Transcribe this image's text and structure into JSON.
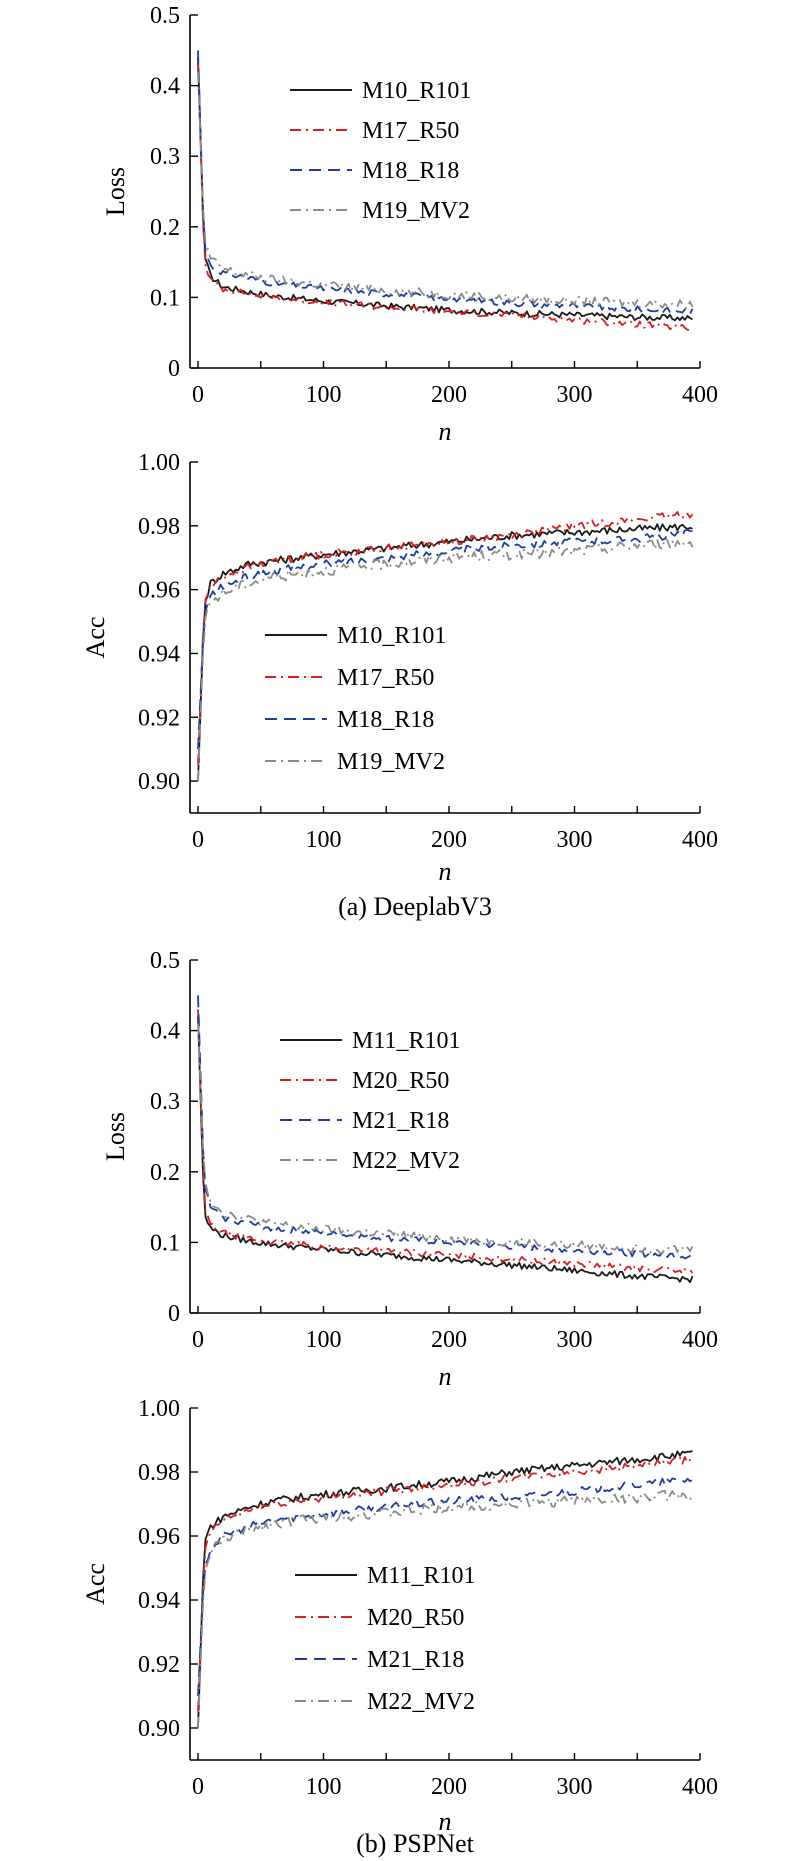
{
  "chart_data": [
    {
      "type": "line",
      "group": "a",
      "xlabel": "n",
      "ylabel": "Loss",
      "xlim": [
        0,
        400
      ],
      "ylim": [
        0,
        0.5
      ],
      "xticks": [
        "0",
        "100",
        "200",
        "300",
        "400"
      ],
      "yticks": [
        "0",
        "0.1",
        "0.2",
        "0.3",
        "0.4",
        "0.5"
      ],
      "legend_position": "top-right",
      "series": [
        {
          "name": "M10_R101",
          "color": "#1a1a1a",
          "dash": "solid",
          "x": [
            0,
            5,
            10,
            20,
            40,
            60,
            100,
            150,
            200,
            250,
            300,
            350,
            400
          ],
          "y": [
            0.44,
            0.16,
            0.13,
            0.115,
            0.108,
            0.102,
            0.095,
            0.088,
            0.082,
            0.078,
            0.075,
            0.072,
            0.07
          ]
        },
        {
          "name": "M17_R50",
          "color": "#d62020",
          "dash": "dashdot",
          "x": [
            0,
            5,
            10,
            20,
            40,
            60,
            100,
            150,
            200,
            250,
            300,
            350,
            400
          ],
          "y": [
            0.43,
            0.15,
            0.125,
            0.112,
            0.105,
            0.1,
            0.093,
            0.086,
            0.08,
            0.075,
            0.068,
            0.062,
            0.055
          ]
        },
        {
          "name": "M18_R18",
          "color": "#1f3d99",
          "dash": "dashed",
          "x": [
            0,
            5,
            10,
            20,
            40,
            60,
            100,
            150,
            200,
            250,
            300,
            350,
            400
          ],
          "y": [
            0.45,
            0.17,
            0.145,
            0.135,
            0.128,
            0.12,
            0.112,
            0.105,
            0.098,
            0.092,
            0.088,
            0.083,
            0.08
          ]
        },
        {
          "name": "M19_MV2",
          "color": "#8a8a8a",
          "dash": "dashdot",
          "x": [
            0,
            5,
            10,
            20,
            40,
            60,
            100,
            150,
            200,
            250,
            300,
            350,
            400
          ],
          "y": [
            0.42,
            0.18,
            0.155,
            0.14,
            0.132,
            0.125,
            0.118,
            0.11,
            0.104,
            0.099,
            0.095,
            0.092,
            0.09
          ]
        }
      ]
    },
    {
      "type": "line",
      "group": "a",
      "xlabel": "n",
      "ylabel": "Acc",
      "xlim": [
        0,
        400
      ],
      "ylim": [
        0.89,
        1.0
      ],
      "xticks": [
        "0",
        "100",
        "200",
        "300",
        "400"
      ],
      "yticks": [
        "0.90",
        "0.92",
        "0.94",
        "0.96",
        "0.98",
        "1.00"
      ],
      "legend_position": "center",
      "series": [
        {
          "name": "M10_R101",
          "color": "#1a1a1a",
          "dash": "solid",
          "x": [
            0,
            5,
            10,
            20,
            40,
            60,
            100,
            150,
            200,
            250,
            300,
            350,
            400
          ],
          "y": [
            0.9,
            0.955,
            0.962,
            0.965,
            0.968,
            0.969,
            0.971,
            0.973,
            0.975,
            0.977,
            0.978,
            0.979,
            0.98
          ]
        },
        {
          "name": "M17_R50",
          "color": "#d62020",
          "dash": "dashdot",
          "x": [
            0,
            5,
            10,
            20,
            40,
            60,
            100,
            150,
            200,
            250,
            300,
            350,
            400
          ],
          "y": [
            0.905,
            0.956,
            0.961,
            0.964,
            0.967,
            0.969,
            0.971,
            0.973,
            0.975,
            0.977,
            0.98,
            0.982,
            0.984
          ]
        },
        {
          "name": "M18_R18",
          "color": "#1f3d99",
          "dash": "dashed",
          "x": [
            0,
            5,
            10,
            20,
            40,
            60,
            100,
            150,
            200,
            250,
            300,
            350,
            400
          ],
          "y": [
            0.91,
            0.952,
            0.958,
            0.961,
            0.964,
            0.966,
            0.968,
            0.97,
            0.972,
            0.974,
            0.975,
            0.976,
            0.978
          ]
        },
        {
          "name": "M19_MV2",
          "color": "#8a8a8a",
          "dash": "dashdot",
          "x": [
            0,
            5,
            10,
            20,
            40,
            60,
            100,
            150,
            200,
            250,
            300,
            350,
            400
          ],
          "y": [
            0.9,
            0.95,
            0.956,
            0.959,
            0.962,
            0.964,
            0.966,
            0.968,
            0.97,
            0.971,
            0.972,
            0.974,
            0.975
          ]
        }
      ]
    },
    {
      "type": "line",
      "group": "b",
      "xlabel": "n",
      "ylabel": "Loss",
      "xlim": [
        0,
        400
      ],
      "ylim": [
        0,
        0.5
      ],
      "xticks": [
        "0",
        "100",
        "200",
        "300",
        "400"
      ],
      "yticks": [
        "0",
        "0.1",
        "0.2",
        "0.3",
        "0.4",
        "0.5"
      ],
      "legend_position": "top-right",
      "series": [
        {
          "name": "M11_R101",
          "color": "#1a1a1a",
          "dash": "solid",
          "x": [
            0,
            5,
            10,
            20,
            40,
            60,
            100,
            150,
            200,
            250,
            300,
            350,
            400
          ],
          "y": [
            0.42,
            0.14,
            0.12,
            0.11,
            0.102,
            0.097,
            0.09,
            0.082,
            0.075,
            0.068,
            0.06,
            0.052,
            0.047
          ]
        },
        {
          "name": "M20_R50",
          "color": "#d62020",
          "dash": "dashdot",
          "x": [
            0,
            5,
            10,
            20,
            40,
            60,
            100,
            150,
            200,
            250,
            300,
            350,
            400
          ],
          "y": [
            0.43,
            0.15,
            0.125,
            0.113,
            0.106,
            0.1,
            0.094,
            0.088,
            0.082,
            0.076,
            0.07,
            0.063,
            0.058
          ]
        },
        {
          "name": "M21_R18",
          "color": "#1f3d99",
          "dash": "dashed",
          "x": [
            0,
            5,
            10,
            20,
            40,
            60,
            100,
            150,
            200,
            250,
            300,
            350,
            400
          ],
          "y": [
            0.45,
            0.18,
            0.15,
            0.135,
            0.127,
            0.12,
            0.113,
            0.106,
            0.1,
            0.094,
            0.089,
            0.084,
            0.08
          ]
        },
        {
          "name": "M22_MV2",
          "color": "#8a8a8a",
          "dash": "dashdot",
          "x": [
            0,
            5,
            10,
            20,
            40,
            60,
            100,
            150,
            200,
            250,
            300,
            350,
            400
          ],
          "y": [
            0.41,
            0.19,
            0.16,
            0.142,
            0.133,
            0.126,
            0.118,
            0.112,
            0.106,
            0.1,
            0.096,
            0.092,
            0.09
          ]
        }
      ]
    },
    {
      "type": "line",
      "group": "b",
      "xlabel": "n",
      "ylabel": "Acc",
      "xlim": [
        0,
        400
      ],
      "ylim": [
        0.89,
        1.0
      ],
      "xticks": [
        "0",
        "100",
        "200",
        "300",
        "400"
      ],
      "yticks": [
        "0.90",
        "0.92",
        "0.94",
        "0.96",
        "0.98",
        "1.00"
      ],
      "legend_position": "bottom-center",
      "series": [
        {
          "name": "M11_R101",
          "color": "#1a1a1a",
          "dash": "solid",
          "x": [
            0,
            5,
            10,
            20,
            40,
            60,
            100,
            150,
            200,
            250,
            300,
            350,
            400
          ],
          "y": [
            0.9,
            0.958,
            0.963,
            0.966,
            0.969,
            0.971,
            0.973,
            0.975,
            0.977,
            0.98,
            0.982,
            0.984,
            0.986
          ]
        },
        {
          "name": "M20_R50",
          "color": "#d62020",
          "dash": "dashdot",
          "x": [
            0,
            5,
            10,
            20,
            40,
            60,
            100,
            150,
            200,
            250,
            300,
            350,
            400
          ],
          "y": [
            0.905,
            0.955,
            0.961,
            0.965,
            0.968,
            0.97,
            0.972,
            0.974,
            0.976,
            0.978,
            0.98,
            0.982,
            0.984
          ]
        },
        {
          "name": "M21_R18",
          "color": "#1f3d99",
          "dash": "dashed",
          "x": [
            0,
            5,
            10,
            20,
            40,
            60,
            100,
            150,
            200,
            250,
            300,
            350,
            400
          ],
          "y": [
            0.91,
            0.95,
            0.956,
            0.96,
            0.963,
            0.965,
            0.967,
            0.969,
            0.971,
            0.972,
            0.974,
            0.976,
            0.978
          ]
        },
        {
          "name": "M22_MV2",
          "color": "#8a8a8a",
          "dash": "dashdot",
          "x": [
            0,
            5,
            10,
            20,
            40,
            60,
            100,
            150,
            200,
            250,
            300,
            350,
            400
          ],
          "y": [
            0.9,
            0.948,
            0.955,
            0.959,
            0.962,
            0.964,
            0.966,
            0.967,
            0.969,
            0.97,
            0.971,
            0.972,
            0.973
          ]
        }
      ]
    }
  ],
  "captions": {
    "a": "(a) DeeplabV3",
    "b": "(b) PSPNet"
  }
}
